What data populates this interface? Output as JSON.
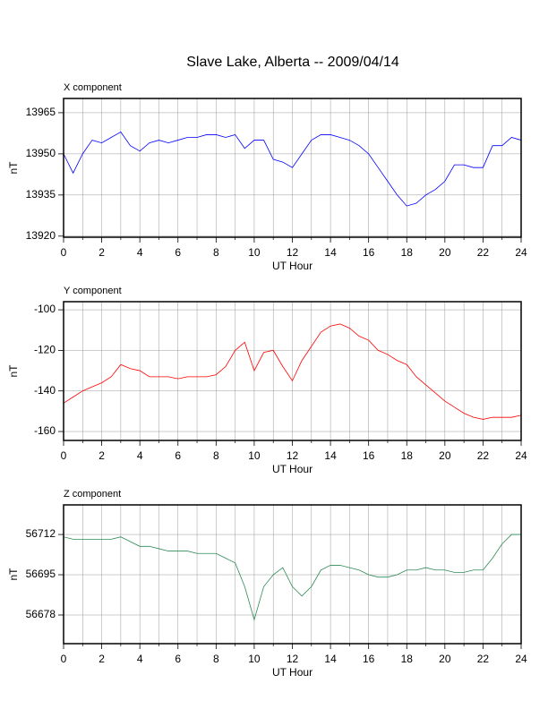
{
  "title": "Slave Lake, Alberta -- 2009/04/14",
  "chart_data": [
    {
      "type": "line",
      "subtitle": "X component",
      "xlabel": "UT Hour",
      "ylabel": "nT",
      "x": [
        0,
        0.5,
        1,
        1.5,
        2,
        2.5,
        3,
        3.5,
        4,
        4.5,
        5,
        5.5,
        6,
        6.5,
        7,
        7.5,
        8,
        8.5,
        9,
        9.5,
        10,
        10.5,
        11,
        11.5,
        12,
        12.5,
        13,
        13.5,
        14,
        14.5,
        15,
        15.5,
        16,
        16.5,
        17,
        17.5,
        18,
        18.5,
        19,
        19.5,
        20,
        20.5,
        21,
        21.5,
        22,
        22.5,
        23,
        23.5,
        24
      ],
      "series": [
        {
          "color": "#0000ff",
          "values": [
            13950,
            13943,
            13950,
            13955,
            13954,
            13956,
            13958,
            13953,
            13951,
            13954,
            13955,
            13954,
            13955,
            13956,
            13956,
            13957,
            13957,
            13956,
            13957,
            13952,
            13955,
            13955,
            13948,
            13947,
            13945,
            13950,
            13955,
            13957,
            13957,
            13956,
            13955,
            13953,
            13950,
            13945,
            13940,
            13935,
            13931,
            13932,
            13935,
            13937,
            13940,
            13946,
            13946,
            13945,
            13945,
            13953,
            13953,
            13956,
            13955
          ]
        }
      ],
      "xlim": [
        0,
        24
      ],
      "ylim": [
        13919.6,
        13970.2
      ],
      "xticks": [
        0,
        2,
        4,
        6,
        8,
        10,
        12,
        14,
        16,
        18,
        20,
        22,
        24
      ],
      "yticks": [
        13920,
        13935,
        13950,
        13965
      ],
      "xgrid": [
        1,
        3,
        5,
        7,
        9,
        11,
        13,
        15,
        17,
        19,
        21,
        23
      ],
      "grid": true
    },
    {
      "type": "line",
      "subtitle": "Y component",
      "xlabel": "UT Hour",
      "ylabel": "nT",
      "x": [
        0,
        0.5,
        1,
        1.5,
        2,
        2.5,
        3,
        3.5,
        4,
        4.5,
        5,
        5.5,
        6,
        6.5,
        7,
        7.5,
        8,
        8.5,
        9,
        9.5,
        10,
        10.5,
        11,
        11.5,
        12,
        12.5,
        13,
        13.5,
        14,
        14.5,
        15,
        15.5,
        16,
        16.5,
        17,
        17.5,
        18,
        18.5,
        19,
        19.5,
        20,
        20.5,
        21,
        21.5,
        22,
        22.5,
        23,
        23.5,
        24
      ],
      "series": [
        {
          "color": "#ff0000",
          "values": [
            -146,
            -143,
            -140,
            -138,
            -136,
            -133,
            -127,
            -129,
            -130,
            -133,
            -133,
            -133,
            -134,
            -133,
            -133,
            -133,
            -132,
            -128,
            -120,
            -116,
            -130,
            -121,
            -120,
            -128,
            -135,
            -125,
            -118,
            -111,
            -108,
            -107,
            -109,
            -113,
            -115,
            -120,
            -122,
            -125,
            -127,
            -133,
            -137,
            -141,
            -145,
            -148,
            -151,
            -153,
            -154,
            -153,
            -153,
            -153,
            -152
          ]
        }
      ],
      "xlim": [
        0,
        24
      ],
      "ylim": [
        -164.4,
        -96
      ],
      "xticks": [
        0,
        2,
        4,
        6,
        8,
        10,
        12,
        14,
        16,
        18,
        20,
        22,
        24
      ],
      "yticks": [
        -160,
        -140,
        -120,
        -100
      ],
      "xgrid": [
        1,
        3,
        5,
        7,
        9,
        11,
        13,
        15,
        17,
        19,
        21,
        23
      ],
      "grid": true
    },
    {
      "type": "line",
      "subtitle": "Z component",
      "xlabel": "UT Hour",
      "ylabel": "nT",
      "x": [
        0,
        0.5,
        1,
        1.5,
        2,
        2.5,
        3,
        3.5,
        4,
        4.5,
        5,
        5.5,
        6,
        6.5,
        7,
        7.5,
        8,
        8.5,
        9,
        9.5,
        10,
        10.5,
        11,
        11.5,
        12,
        12.5,
        13,
        13.5,
        14,
        14.5,
        15,
        15.5,
        16,
        16.5,
        17,
        17.5,
        18,
        18.5,
        19,
        19.5,
        20,
        20.5,
        21,
        21.5,
        22,
        22.5,
        23,
        23.5,
        24
      ],
      "series": [
        {
          "color": "#2e8b57",
          "values": [
            56711,
            56710,
            56710,
            56710,
            56710,
            56710,
            56711,
            56709,
            56707,
            56707,
            56706,
            56705,
            56705,
            56705,
            56704,
            56704,
            56704,
            56702,
            56700,
            56690,
            56676,
            56690,
            56695,
            56698,
            56690,
            56686,
            56690,
            56697,
            56699,
            56699,
            56698,
            56697,
            56695,
            56694,
            56694,
            56695,
            56697,
            56697,
            56698,
            56697,
            56697,
            56696,
            56696,
            56697,
            56697,
            56702,
            56708,
            56712,
            56712
          ]
        }
      ],
      "xlim": [
        0,
        24
      ],
      "ylim": [
        56665.9,
        56724.5
      ],
      "xticks": [
        0,
        2,
        4,
        6,
        8,
        10,
        12,
        14,
        16,
        18,
        20,
        22,
        24
      ],
      "yticks": [
        56678,
        56695,
        56712
      ],
      "xgrid": [
        1,
        3,
        5,
        7,
        9,
        11,
        13,
        15,
        17,
        19,
        21,
        23
      ],
      "grid": true
    }
  ]
}
